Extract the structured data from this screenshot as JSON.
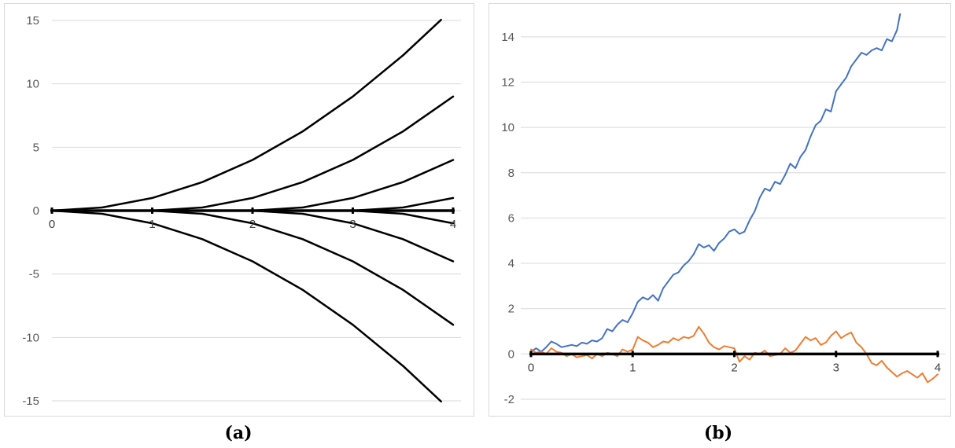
{
  "chart_data": [
    {
      "type": "line",
      "title": "",
      "caption": "(a)",
      "xlabel": "",
      "ylabel": "",
      "xlim": [
        0,
        4
      ],
      "ylim": [
        -15,
        15
      ],
      "yticks": [
        15,
        10,
        5,
        0,
        -5,
        -10,
        -15
      ],
      "xticks": [
        0,
        1,
        2,
        3,
        4
      ],
      "grid": "horizontal",
      "legend": "none",
      "colors": {
        "curves": "#000000",
        "grid": "#d9d9d9"
      },
      "series": [
        {
          "x": [
            0,
            0.5,
            1,
            1.5,
            2,
            2.5,
            3,
            3.5,
            3.88
          ],
          "values": [
            0,
            0.25,
            1,
            2.25,
            4,
            6.25,
            9,
            12.25,
            15.05
          ]
        },
        {
          "x": [
            0,
            1,
            1.5,
            2,
            2.5,
            3,
            3.5,
            4
          ],
          "values": [
            0,
            0,
            0.25,
            1,
            2.25,
            4,
            6.25,
            9
          ]
        },
        {
          "x": [
            0,
            2,
            2.5,
            3,
            3.5,
            4
          ],
          "values": [
            0,
            0,
            0.25,
            1,
            2.25,
            4
          ]
        },
        {
          "x": [
            0,
            3,
            3.5,
            4
          ],
          "values": [
            0,
            0,
            0.25,
            1
          ]
        },
        {
          "x": [
            0,
            3,
            3.5,
            4
          ],
          "values": [
            0,
            0,
            -0.25,
            -1
          ]
        },
        {
          "x": [
            0,
            2,
            2.5,
            3,
            3.5,
            4
          ],
          "values": [
            0,
            0,
            -0.25,
            -1,
            -2.25,
            -4
          ]
        },
        {
          "x": [
            0,
            1,
            1.5,
            2,
            2.5,
            3,
            3.5,
            4
          ],
          "values": [
            0,
            0,
            -0.25,
            -1,
            -2.25,
            -4,
            -6.25,
            -9
          ]
        },
        {
          "x": [
            0,
            0.5,
            1,
            1.5,
            2,
            2.5,
            3,
            3.5,
            3.88
          ],
          "values": [
            0,
            -0.25,
            -1,
            -2.25,
            -4,
            -6.25,
            -9,
            -12.25,
            -15.05
          ]
        }
      ]
    },
    {
      "type": "line",
      "title": "",
      "caption": "(b)",
      "xlabel": "",
      "ylabel": "",
      "xlim": [
        0,
        4
      ],
      "ylim": [
        -2,
        15
      ],
      "yticks": [
        14,
        12,
        10,
        8,
        6,
        4,
        2,
        0,
        -2
      ],
      "xticks": [
        0,
        1,
        2,
        3,
        4
      ],
      "grid": "horizontal",
      "legend": "none",
      "series": [
        {
          "color": "#4472c4",
          "x": [
            0,
            0.05,
            0.1,
            0.15,
            0.2,
            0.25,
            0.3,
            0.35,
            0.4,
            0.45,
            0.5,
            0.55,
            0.6,
            0.65,
            0.7,
            0.75,
            0.8,
            0.85,
            0.9,
            0.95,
            1.0,
            1.05,
            1.1,
            1.15,
            1.2,
            1.25,
            1.3,
            1.35,
            1.4,
            1.45,
            1.5,
            1.55,
            1.6,
            1.65,
            1.7,
            1.75,
            1.8,
            1.85,
            1.9,
            1.95,
            2.0,
            2.05,
            2.1,
            2.15,
            2.2,
            2.25,
            2.3,
            2.35,
            2.4,
            2.45,
            2.5,
            2.55,
            2.6,
            2.65,
            2.7,
            2.75,
            2.8,
            2.85,
            2.9,
            2.95,
            3.0,
            3.05,
            3.1,
            3.15,
            3.2,
            3.25,
            3.3,
            3.35,
            3.4,
            3.45,
            3.5,
            3.55,
            3.6,
            3.63
          ],
          "values": [
            0.1,
            0.25,
            0.1,
            0.3,
            0.55,
            0.45,
            0.3,
            0.35,
            0.4,
            0.35,
            0.5,
            0.45,
            0.6,
            0.55,
            0.7,
            1.1,
            1.0,
            1.3,
            1.5,
            1.4,
            1.8,
            2.3,
            2.5,
            2.4,
            2.6,
            2.35,
            2.9,
            3.2,
            3.5,
            3.6,
            3.9,
            4.1,
            4.4,
            4.85,
            4.7,
            4.8,
            4.55,
            4.9,
            5.1,
            5.4,
            5.5,
            5.3,
            5.4,
            5.9,
            6.3,
            6.9,
            7.3,
            7.2,
            7.6,
            7.5,
            7.9,
            8.4,
            8.2,
            8.7,
            9.0,
            9.6,
            10.1,
            10.3,
            10.8,
            10.7,
            11.6,
            11.9,
            12.2,
            12.7,
            13.0,
            13.3,
            13.2,
            13.4,
            13.5,
            13.4,
            13.9,
            13.8,
            14.3,
            15.0
          ]
        },
        {
          "color": "#ed7d31",
          "x": [
            0,
            0.05,
            0.1,
            0.15,
            0.2,
            0.25,
            0.3,
            0.35,
            0.4,
            0.45,
            0.5,
            0.55,
            0.6,
            0.65,
            0.7,
            0.75,
            0.8,
            0.85,
            0.9,
            0.95,
            1.0,
            1.05,
            1.1,
            1.15,
            1.2,
            1.25,
            1.3,
            1.35,
            1.4,
            1.45,
            1.5,
            1.55,
            1.6,
            1.65,
            1.7,
            1.75,
            1.8,
            1.85,
            1.9,
            1.95,
            2.0,
            2.05,
            2.1,
            2.15,
            2.2,
            2.25,
            2.3,
            2.35,
            2.4,
            2.45,
            2.5,
            2.55,
            2.6,
            2.65,
            2.7,
            2.75,
            2.8,
            2.85,
            2.9,
            2.95,
            3.0,
            3.05,
            3.1,
            3.15,
            3.2,
            3.25,
            3.3,
            3.35,
            3.4,
            3.45,
            3.5,
            3.55,
            3.6,
            3.65,
            3.7,
            3.75,
            3.8,
            3.85,
            3.9,
            3.95,
            4.0
          ],
          "values": [
            0.2,
            0.05,
            0.1,
            0.0,
            0.25,
            0.1,
            0.05,
            -0.1,
            0.0,
            -0.15,
            -0.1,
            -0.05,
            -0.2,
            0.0,
            -0.1,
            0.05,
            0.0,
            -0.1,
            0.2,
            0.1,
            0.2,
            0.75,
            0.6,
            0.5,
            0.3,
            0.4,
            0.55,
            0.5,
            0.7,
            0.6,
            0.75,
            0.7,
            0.8,
            1.2,
            0.9,
            0.5,
            0.3,
            0.2,
            0.35,
            0.3,
            0.25,
            -0.35,
            -0.1,
            -0.25,
            0.05,
            0.0,
            0.15,
            -0.1,
            -0.05,
            0.0,
            0.25,
            0.05,
            0.15,
            0.45,
            0.75,
            0.6,
            0.7,
            0.4,
            0.5,
            0.8,
            1.0,
            0.7,
            0.85,
            0.95,
            0.5,
            0.3,
            0.0,
            -0.4,
            -0.5,
            -0.3,
            -0.6,
            -0.8,
            -1.0,
            -0.85,
            -0.75,
            -0.9,
            -1.05,
            -0.85,
            -1.25,
            -1.1,
            -0.9
          ]
        }
      ]
    }
  ]
}
